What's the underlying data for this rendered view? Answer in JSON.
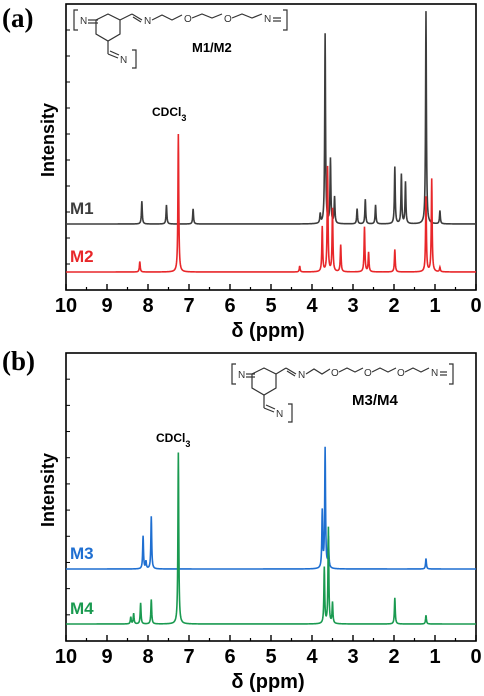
{
  "figure": {
    "panels": [
      {
        "letter": "(a)",
        "annotation": "CDCl",
        "annotation_sub": "3",
        "structure_label": "M1/M2",
        "structure_atoms": {
          "n1": "N",
          "n2": "N",
          "n3": "N",
          "o1": "O",
          "o2": "O",
          "n4": "N"
        }
      },
      {
        "letter": "(b)",
        "annotation": "CDCl",
        "annotation_sub": "3",
        "structure_label": "M3/M4",
        "structure_atoms": {
          "n1": "N",
          "n2": "N",
          "n3": "N",
          "o1": "O",
          "o2": "O",
          "o3": "O",
          "n4": "N"
        }
      }
    ]
  },
  "chart_data": [
    {
      "type": "line",
      "title": "",
      "xlabel": "δ (ppm)",
      "ylabel": "Intensity",
      "xlim": [
        10,
        0
      ],
      "x_reversed": true,
      "x_ticks": [
        "10",
        "9",
        "8",
        "7",
        "6",
        "5",
        "4",
        "3",
        "2",
        "1",
        "0"
      ],
      "annotations": [
        {
          "text": "CDCl3",
          "x": 7.26
        }
      ],
      "series": [
        {
          "name": "M1",
          "color": "#3d3d3d",
          "peaks": [
            [
              8.15,
              0.12
            ],
            [
              7.55,
              0.1
            ],
            [
              6.9,
              0.08
            ],
            [
              3.8,
              0.05
            ],
            [
              3.68,
              1.0
            ],
            [
              3.55,
              0.34
            ],
            [
              3.45,
              0.14
            ],
            [
              2.9,
              0.08
            ],
            [
              2.7,
              0.13
            ],
            [
              2.45,
              0.1
            ],
            [
              1.98,
              0.3
            ],
            [
              1.82,
              0.26
            ],
            [
              1.72,
              0.22
            ],
            [
              1.22,
              1.12
            ],
            [
              0.88,
              0.07
            ]
          ]
        },
        {
          "name": "M2",
          "color": "#e8272a",
          "peaks": [
            [
              8.2,
              0.07
            ],
            [
              7.26,
              0.92
            ],
            [
              4.3,
              0.04
            ],
            [
              3.75,
              0.3
            ],
            [
              3.62,
              0.7
            ],
            [
              3.5,
              0.42
            ],
            [
              3.3,
              0.18
            ],
            [
              2.72,
              0.3
            ],
            [
              2.62,
              0.13
            ],
            [
              1.98,
              0.15
            ],
            [
              1.22,
              0.5
            ],
            [
              1.08,
              0.62
            ],
            [
              0.88,
              0.03
            ]
          ]
        }
      ]
    },
    {
      "type": "line",
      "title": "",
      "xlabel": "δ (ppm)",
      "ylabel": "Intensity",
      "xlim": [
        10,
        0
      ],
      "x_reversed": true,
      "x_ticks": [
        "10",
        "9",
        "8",
        "7",
        "6",
        "5",
        "4",
        "3",
        "2",
        "1",
        "0"
      ],
      "annotations": [
        {
          "text": "CDCl3",
          "x": 7.26
        }
      ],
      "series": [
        {
          "name": "M3",
          "color": "#1f6fd1",
          "peaks": [
            [
              8.12,
              0.22
            ],
            [
              8.05,
              0.05
            ],
            [
              7.92,
              0.35
            ],
            [
              3.75,
              0.38
            ],
            [
              3.68,
              0.8
            ],
            [
              3.6,
              0.2
            ],
            [
              1.22,
              0.07
            ]
          ]
        },
        {
          "name": "M4",
          "color": "#1a9a50",
          "peaks": [
            [
              8.42,
              0.04
            ],
            [
              8.35,
              0.06
            ],
            [
              8.18,
              0.12
            ],
            [
              7.92,
              0.14
            ],
            [
              7.26,
              0.98
            ],
            [
              3.7,
              0.32
            ],
            [
              3.6,
              0.55
            ],
            [
              3.5,
              0.12
            ],
            [
              1.98,
              0.15
            ],
            [
              1.22,
              0.05
            ]
          ]
        }
      ]
    }
  ]
}
